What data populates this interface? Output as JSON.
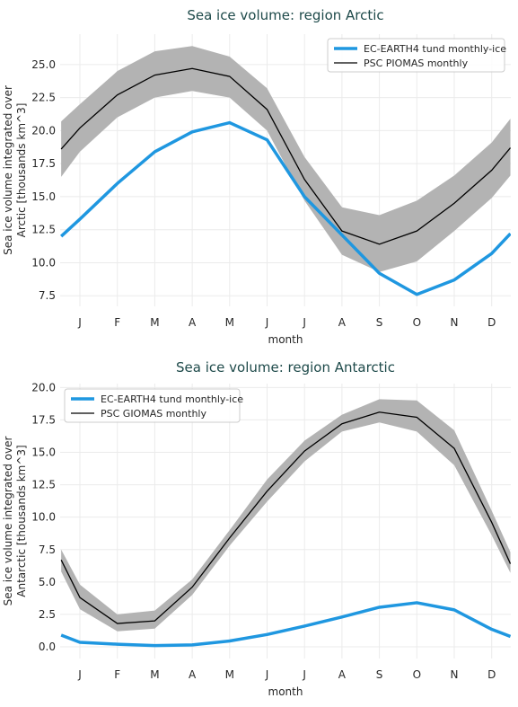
{
  "colors": {
    "model": "#1f97e0",
    "obs": "#000000",
    "band": "#b3b3b3",
    "grid": "#ebebeb"
  },
  "chart_data": [
    {
      "type": "line",
      "title": "Sea ice volume: region Arctic",
      "xlabel": "month",
      "ylabel": "Sea ice volume integrated over\nArctic [thousands km^3]",
      "months": [
        "J",
        "F",
        "M",
        "A",
        "M",
        "J",
        "J",
        "A",
        "S",
        "O",
        "N",
        "D"
      ],
      "yticks": [
        "7.5",
        "10.0",
        "12.5",
        "15.0",
        "17.5",
        "20.0",
        "22.5",
        "25.0"
      ],
      "ylim": [
        6.7,
        27.3
      ],
      "series": [
        {
          "name": "EC-EARTH4 tund monthly-ice",
          "values": [
            13.3,
            16.0,
            18.4,
            19.9,
            20.6,
            19.3,
            15.0,
            12.1,
            9.2,
            7.6,
            8.7,
            10.7
          ],
          "edge_start": 12.0,
          "edge_end": 12.2
        },
        {
          "name": "PSC PIOMAS monthly",
          "values": [
            20.2,
            22.7,
            24.2,
            24.7,
            24.1,
            21.6,
            16.3,
            12.4,
            11.4,
            12.4,
            14.5,
            17.0
          ],
          "edge_start": 18.6,
          "edge_end": 18.7,
          "band_low": [
            18.4,
            21.0,
            22.5,
            23.0,
            22.5,
            20.0,
            14.7,
            10.6,
            9.3,
            10.1,
            12.4,
            14.9
          ],
          "band_high": [
            22.0,
            24.5,
            26.0,
            26.4,
            25.6,
            23.2,
            18.0,
            14.2,
            13.6,
            14.7,
            16.6,
            19.1
          ],
          "band_edge_start": [
            16.5,
            20.7
          ],
          "band_edge_end": [
            16.6,
            20.9
          ]
        }
      ],
      "legend": "top-right",
      "grid": true
    },
    {
      "type": "line",
      "title": "Sea ice volume: region Antarctic",
      "xlabel": "month",
      "ylabel": "Sea ice volume integrated over\nAntarctic [thousands km^3]",
      "months": [
        "J",
        "F",
        "M",
        "A",
        "M",
        "J",
        "J",
        "A",
        "S",
        "O",
        "N",
        "D"
      ],
      "yticks": [
        "0.0",
        "2.5",
        "5.0",
        "7.5",
        "10.0",
        "12.5",
        "15.0",
        "17.5",
        "20.0"
      ],
      "ylim": [
        -0.9,
        20.3
      ],
      "series": [
        {
          "name": "EC-EARTH4 tund monthly-ice",
          "values": [
            0.35,
            0.2,
            0.1,
            0.15,
            0.45,
            0.95,
            1.6,
            2.3,
            3.05,
            3.4,
            2.85,
            1.35
          ],
          "edge_start": 0.9,
          "edge_end": 0.8
        },
        {
          "name": "PSC GIOMAS monthly",
          "values": [
            3.8,
            1.8,
            2.0,
            4.6,
            8.4,
            12.0,
            15.1,
            17.2,
            18.1,
            17.7,
            15.3,
            9.6
          ],
          "edge_start": 6.7,
          "edge_end": 6.4,
          "band_low": [
            2.9,
            1.2,
            1.4,
            4.0,
            7.8,
            11.2,
            14.3,
            16.6,
            17.3,
            16.6,
            14.0,
            8.6
          ],
          "band_high": [
            4.8,
            2.5,
            2.8,
            5.2,
            9.0,
            12.9,
            15.9,
            17.9,
            19.1,
            19.0,
            16.7,
            10.5
          ],
          "band_edge_start": [
            5.8,
            7.5
          ],
          "band_edge_end": [
            5.7,
            7.3
          ]
        }
      ],
      "legend": "top-left",
      "grid": true
    }
  ]
}
